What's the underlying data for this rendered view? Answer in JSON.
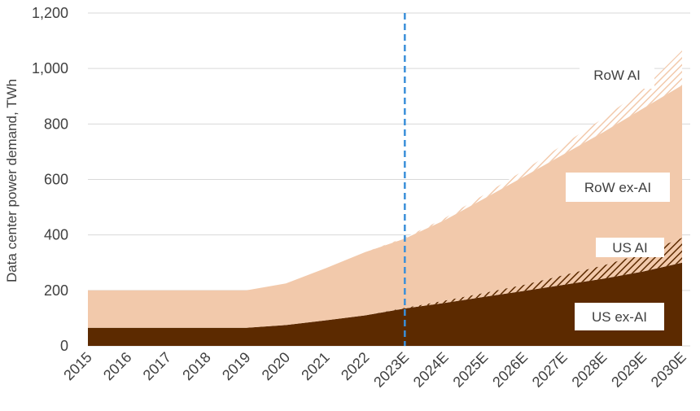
{
  "chart_data": {
    "type": "area",
    "stacked": true,
    "ylabel": "Data center power demand, TWh",
    "xlabel": "",
    "ylim": [
      0,
      1200
    ],
    "yticks": [
      "0",
      "200",
      "400",
      "600",
      "800",
      "1,000",
      "1,200"
    ],
    "yticks_values": [
      0,
      200,
      400,
      600,
      800,
      1000,
      1200
    ],
    "categories": [
      "2015",
      "2016",
      "2017",
      "2018",
      "2019",
      "2020",
      "2021",
      "2022",
      "2023E",
      "2024E",
      "2025E",
      "2026E",
      "2027E",
      "2028E",
      "2029E",
      "2030E"
    ],
    "forecast_divider_at": "2023E",
    "grid": "horizontal",
    "series": [
      {
        "name": "US ex-AI",
        "pattern": "solid",
        "color": "#5c2a00",
        "values": [
          65,
          65,
          65,
          65,
          65,
          75,
          92,
          110,
          135,
          155,
          177,
          198,
          220,
          242,
          268,
          300
        ]
      },
      {
        "name": "US AI",
        "pattern": "hatched",
        "color": "#5c2a00",
        "values": [
          0,
          0,
          0,
          0,
          0,
          0,
          0,
          0,
          2,
          8,
          14,
          22,
          35,
          48,
          65,
          90
        ]
      },
      {
        "name": "RoW ex-AI",
        "pattern": "solid",
        "color": "#f2c9ab",
        "values": [
          135,
          135,
          135,
          135,
          135,
          150,
          188,
          228,
          250,
          290,
          340,
          390,
          435,
          480,
          522,
          550
        ]
      },
      {
        "name": "RoW AI",
        "pattern": "hatched",
        "color": "#f2c9ab",
        "values": [
          0,
          0,
          0,
          0,
          0,
          0,
          0,
          0,
          3,
          7,
          14,
          22,
          36,
          50,
          68,
          125
        ]
      }
    ]
  }
}
